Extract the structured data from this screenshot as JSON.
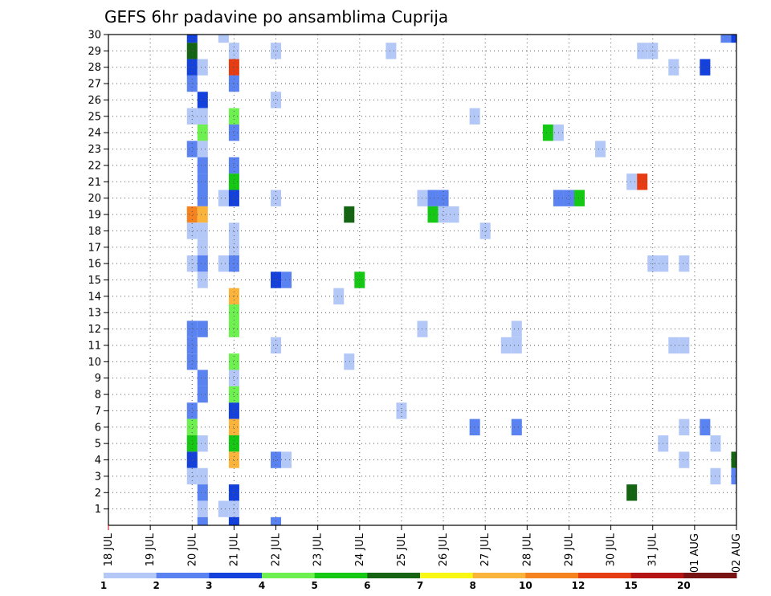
{
  "chart_data": {
    "type": "heatmap",
    "title": "GEFS 6hr padavine po ansamblima Cuprija",
    "x_tick_labels": [
      "18 JUL",
      "19 JUL",
      "20 JUL",
      "21 JUL",
      "22 JUL",
      "23 JUL",
      "24 JUL",
      "25 JUL",
      "26 JUL",
      "27 JUL",
      "28 JUL",
      "29 JUL",
      "30 JUL",
      "31 JUL",
      "01 AUG",
      "02 AUG"
    ],
    "y_tick_labels": [
      "1",
      "2",
      "3",
      "4",
      "5",
      "6",
      "7",
      "8",
      "9",
      "10",
      "11",
      "12",
      "13",
      "14",
      "15",
      "16",
      "17",
      "18",
      "19",
      "20",
      "21",
      "22",
      "23",
      "24",
      "25",
      "26",
      "27",
      "28",
      "29",
      "30"
    ],
    "ylim": [
      0,
      30
    ],
    "grid": true,
    "colorbar": {
      "position": "bottom",
      "labels": [
        "1",
        "2",
        "3",
        "4",
        "5",
        "6",
        "7",
        "8",
        "10",
        "12",
        "15",
        "20"
      ],
      "colors": [
        "#b4c8f8",
        "#5a82f0",
        "#1440dc",
        "#6ef050",
        "#14c814",
        "#146414",
        "#f8f814",
        "#fab43c",
        "#f5821e",
        "#e63c14",
        "#b41414",
        "#781414"
      ]
    },
    "cells": [
      {
        "m": 30,
        "d": 20.0,
        "v": 3
      },
      {
        "m": 30,
        "d": 20.75,
        "v": 1
      },
      {
        "m": 30,
        "d": 32.75,
        "v": 2
      },
      {
        "m": 30,
        "d": 33.0,
        "v": 3
      },
      {
        "m": 29,
        "d": 20.0,
        "v": 6
      },
      {
        "m": 29,
        "d": 21.0,
        "v": 1
      },
      {
        "m": 29,
        "d": 22.0,
        "v": 1
      },
      {
        "m": 29,
        "d": 24.75,
        "v": 1
      },
      {
        "m": 29,
        "d": 30.75,
        "v": 1
      },
      {
        "m": 29,
        "d": 31.0,
        "v": 1
      },
      {
        "m": 28,
        "d": 20.0,
        "v": 3
      },
      {
        "m": 28,
        "d": 20.25,
        "v": 1
      },
      {
        "m": 28,
        "d": 21.0,
        "v": 12
      },
      {
        "m": 28,
        "d": 31.5,
        "v": 1
      },
      {
        "m": 28,
        "d": 32.25,
        "v": 3
      },
      {
        "m": 27,
        "d": 20.0,
        "v": 2
      },
      {
        "m": 27,
        "d": 21.0,
        "v": 2
      },
      {
        "m": 26,
        "d": 20.25,
        "v": 3
      },
      {
        "m": 26,
        "d": 22.0,
        "v": 1
      },
      {
        "m": 25,
        "d": 20.0,
        "v": 1
      },
      {
        "m": 25,
        "d": 20.25,
        "v": 1
      },
      {
        "m": 25,
        "d": 21.0,
        "v": 4
      },
      {
        "m": 25,
        "d": 26.75,
        "v": 1
      },
      {
        "m": 24,
        "d": 20.25,
        "v": 4
      },
      {
        "m": 24,
        "d": 21.0,
        "v": 2
      },
      {
        "m": 24,
        "d": 28.5,
        "v": 5
      },
      {
        "m": 24,
        "d": 28.75,
        "v": 1
      },
      {
        "m": 23,
        "d": 20.0,
        "v": 2
      },
      {
        "m": 23,
        "d": 20.25,
        "v": 1
      },
      {
        "m": 23,
        "d": 29.75,
        "v": 1
      },
      {
        "m": 22,
        "d": 20.25,
        "v": 2
      },
      {
        "m": 22,
        "d": 21.0,
        "v": 2
      },
      {
        "m": 21,
        "d": 20.25,
        "v": 2
      },
      {
        "m": 21,
        "d": 21.0,
        "v": 5
      },
      {
        "m": 21,
        "d": 30.5,
        "v": 1
      },
      {
        "m": 21,
        "d": 30.75,
        "v": 12
      },
      {
        "m": 20,
        "d": 20.25,
        "v": 2
      },
      {
        "m": 20,
        "d": 20.75,
        "v": 1
      },
      {
        "m": 20,
        "d": 21.0,
        "v": 3
      },
      {
        "m": 20,
        "d": 22.0,
        "v": 1
      },
      {
        "m": 20,
        "d": 25.5,
        "v": 1
      },
      {
        "m": 20,
        "d": 25.75,
        "v": 2
      },
      {
        "m": 20,
        "d": 26.0,
        "v": 2
      },
      {
        "m": 20,
        "d": 28.75,
        "v": 2
      },
      {
        "m": 20,
        "d": 29.0,
        "v": 2
      },
      {
        "m": 20,
        "d": 29.25,
        "v": 5
      },
      {
        "m": 19,
        "d": 20.0,
        "v": 10
      },
      {
        "m": 19,
        "d": 20.25,
        "v": 8
      },
      {
        "m": 19,
        "d": 23.75,
        "v": 6
      },
      {
        "m": 19,
        "d": 25.75,
        "v": 5
      },
      {
        "m": 19,
        "d": 26.0,
        "v": 1
      },
      {
        "m": 19,
        "d": 26.25,
        "v": 1
      },
      {
        "m": 18,
        "d": 20.0,
        "v": 1
      },
      {
        "m": 18,
        "d": 20.25,
        "v": 1
      },
      {
        "m": 18,
        "d": 21.0,
        "v": 1
      },
      {
        "m": 18,
        "d": 27.0,
        "v": 1
      },
      {
        "m": 17,
        "d": 20.25,
        "v": 1
      },
      {
        "m": 17,
        "d": 21.0,
        "v": 1
      },
      {
        "m": 16,
        "d": 20.0,
        "v": 1
      },
      {
        "m": 16,
        "d": 20.25,
        "v": 2
      },
      {
        "m": 16,
        "d": 20.75,
        "v": 1
      },
      {
        "m": 16,
        "d": 21.0,
        "v": 2
      },
      {
        "m": 16,
        "d": 31.0,
        "v": 1
      },
      {
        "m": 16,
        "d": 31.25,
        "v": 1
      },
      {
        "m": 16,
        "d": 31.75,
        "v": 1
      },
      {
        "m": 15,
        "d": 20.25,
        "v": 1
      },
      {
        "m": 15,
        "d": 22.0,
        "v": 3
      },
      {
        "m": 15,
        "d": 22.25,
        "v": 2
      },
      {
        "m": 15,
        "d": 24.0,
        "v": 5
      },
      {
        "m": 14,
        "d": 21.0,
        "v": 8
      },
      {
        "m": 14,
        "d": 23.5,
        "v": 1
      },
      {
        "m": 13,
        "d": 21.0,
        "v": 4
      },
      {
        "m": 12,
        "d": 20.0,
        "v": 2
      },
      {
        "m": 12,
        "d": 20.25,
        "v": 2
      },
      {
        "m": 12,
        "d": 21.0,
        "v": 4
      },
      {
        "m": 12,
        "d": 25.5,
        "v": 1
      },
      {
        "m": 12,
        "d": 27.75,
        "v": 1
      },
      {
        "m": 11,
        "d": 20.0,
        "v": 2
      },
      {
        "m": 11,
        "d": 22.0,
        "v": 1
      },
      {
        "m": 11,
        "d": 27.5,
        "v": 1
      },
      {
        "m": 11,
        "d": 27.75,
        "v": 1
      },
      {
        "m": 11,
        "d": 31.5,
        "v": 1
      },
      {
        "m": 11,
        "d": 31.75,
        "v": 1
      },
      {
        "m": 10,
        "d": 20.0,
        "v": 2
      },
      {
        "m": 10,
        "d": 21.0,
        "v": 4
      },
      {
        "m": 10,
        "d": 23.75,
        "v": 1
      },
      {
        "m": 9,
        "d": 20.25,
        "v": 2
      },
      {
        "m": 9,
        "d": 21.0,
        "v": 1
      },
      {
        "m": 8,
        "d": 20.25,
        "v": 2
      },
      {
        "m": 8,
        "d": 21.0,
        "v": 4
      },
      {
        "m": 7,
        "d": 20.0,
        "v": 2
      },
      {
        "m": 7,
        "d": 21.0,
        "v": 3
      },
      {
        "m": 7,
        "d": 25.0,
        "v": 1
      },
      {
        "m": 6,
        "d": 20.0,
        "v": 4
      },
      {
        "m": 6,
        "d": 21.0,
        "v": 8
      },
      {
        "m": 6,
        "d": 26.75,
        "v": 2
      },
      {
        "m": 6,
        "d": 27.75,
        "v": 2
      },
      {
        "m": 6,
        "d": 31.75,
        "v": 1
      },
      {
        "m": 6,
        "d": 32.25,
        "v": 2
      },
      {
        "m": 5,
        "d": 20.0,
        "v": 5
      },
      {
        "m": 5,
        "d": 20.25,
        "v": 1
      },
      {
        "m": 5,
        "d": 21.0,
        "v": 5
      },
      {
        "m": 5,
        "d": 31.25,
        "v": 1
      },
      {
        "m": 5,
        "d": 32.5,
        "v": 1
      },
      {
        "m": 4,
        "d": 20.0,
        "v": 3
      },
      {
        "m": 4,
        "d": 21.0,
        "v": 8
      },
      {
        "m": 4,
        "d": 22.0,
        "v": 2
      },
      {
        "m": 4,
        "d": 22.25,
        "v": 1
      },
      {
        "m": 4,
        "d": 31.75,
        "v": 1
      },
      {
        "m": 4,
        "d": 33.0,
        "v": 6
      },
      {
        "m": 3,
        "d": 20.0,
        "v": 1
      },
      {
        "m": 3,
        "d": 20.25,
        "v": 1
      },
      {
        "m": 3,
        "d": 32.5,
        "v": 1
      },
      {
        "m": 3,
        "d": 33.0,
        "v": 2
      },
      {
        "m": 2,
        "d": 20.25,
        "v": 2
      },
      {
        "m": 2,
        "d": 21.0,
        "v": 3
      },
      {
        "m": 2,
        "d": 30.5,
        "v": 6
      },
      {
        "m": 1,
        "d": 20.25,
        "v": 1
      },
      {
        "m": 1,
        "d": 20.75,
        "v": 1
      },
      {
        "m": 1,
        "d": 21.0,
        "v": 1
      },
      {
        "m": 0,
        "d": 20.25,
        "v": 2
      },
      {
        "m": 0,
        "d": 21.0,
        "v": 3
      },
      {
        "m": 0,
        "d": 22.0,
        "v": 2
      }
    ]
  }
}
